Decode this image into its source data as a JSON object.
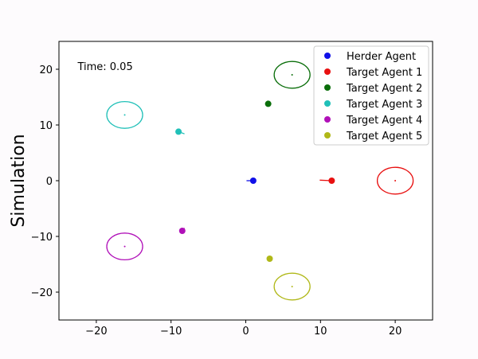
{
  "chart_data": {
    "type": "scatter",
    "ylabel": "Simulation",
    "annotation": "Time: 0.05",
    "xlim": [
      -25,
      25
    ],
    "ylim": [
      -25,
      25
    ],
    "xticks": [
      -20,
      -10,
      0,
      10,
      20
    ],
    "yticks": [
      -20,
      -10,
      0,
      10,
      20
    ],
    "xtick_labels": [
      "−20",
      "−10",
      "0",
      "10",
      "20"
    ],
    "ytick_labels": [
      "−20",
      "−10",
      "0",
      "10",
      "20"
    ],
    "grid": false,
    "legend_position": "top-right",
    "target_radius": 2.4,
    "series": [
      {
        "name": "Herder Agent",
        "color": "#1010e8",
        "position": [
          1.0,
          0.0
        ],
        "heading": [
          -0.9,
          0.0
        ],
        "goal": null
      },
      {
        "name": "Target Agent 1",
        "color": "#e81010",
        "position": [
          11.5,
          0.0
        ],
        "heading": [
          -1.6,
          0.1
        ],
        "goal": [
          20.0,
          0.0
        ]
      },
      {
        "name": "Target Agent 2",
        "color": "#0a6e0a",
        "position": [
          3.0,
          13.8
        ],
        "heading": [
          0.0,
          0.0
        ],
        "goal": [
          6.2,
          19.0
        ]
      },
      {
        "name": "Target Agent 3",
        "color": "#20c0b8",
        "position": [
          -9.0,
          8.8
        ],
        "heading": [
          0.8,
          -0.4
        ],
        "goal": [
          -16.2,
          11.8
        ]
      },
      {
        "name": "Target Agent 4",
        "color": "#b010b8",
        "position": [
          -8.5,
          -9.0
        ],
        "heading": [
          0.3,
          0.5
        ],
        "goal": [
          -16.2,
          -11.8
        ]
      },
      {
        "name": "Target Agent 5",
        "color": "#b0b818",
        "position": [
          3.2,
          -14.0
        ],
        "heading": [
          -0.1,
          0.3
        ],
        "goal": [
          6.2,
          -19.0
        ]
      }
    ]
  }
}
